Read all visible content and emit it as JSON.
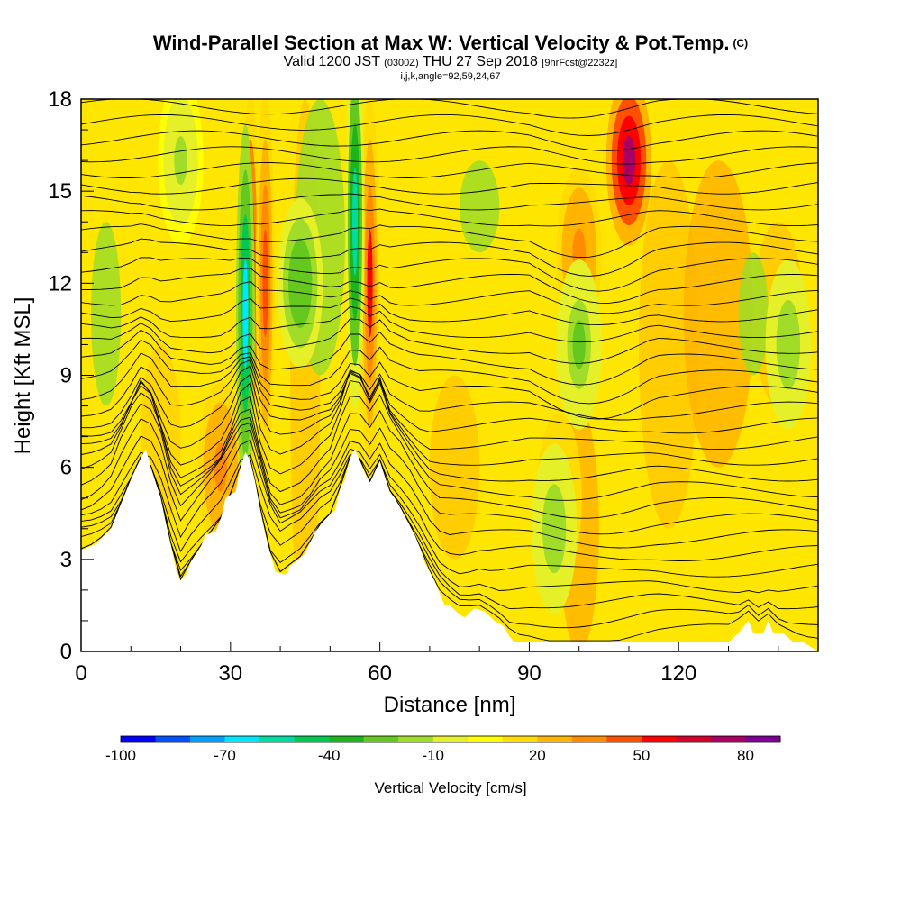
{
  "title": {
    "main": "Wind-Parallel Section at Max W: Vertical Velocity & Pot.Temp.",
    "mark": "(C)",
    "valid_prefix": "Valid 1200 JST",
    "zulu": "(0300Z)",
    "date": "THU 27 Sep 2018",
    "fcst": "[9hrFcst@2232z]",
    "indices": "i,j,k,angle=92,59,24,67"
  },
  "chart_data": {
    "type": "heatmap",
    "xlabel": "Distance [nm]",
    "ylabel": "Height [Kft MSL]",
    "xlim": [
      0,
      148
    ],
    "ylim": [
      0,
      18
    ],
    "x_ticks": [
      "0",
      "30",
      "60",
      "90",
      "120"
    ],
    "y_ticks": [
      "0",
      "3",
      "6",
      "9",
      "12",
      "15",
      "18"
    ],
    "colorbar": {
      "title": "Vertical Velocity [cm/s]",
      "tick_labels": [
        "-100",
        "-70",
        "-40",
        "-10",
        "20",
        "50",
        "80"
      ],
      "colors": [
        "#0000ff",
        "#0050ff",
        "#00a0ff",
        "#00e6ff",
        "#00dca0",
        "#00c850",
        "#1eb41e",
        "#64c81e",
        "#a0dc28",
        "#e6f028",
        "#ffff00",
        "#ffdc00",
        "#ffb400",
        "#ff8c00",
        "#ff5000",
        "#ff0000",
        "#d2002d",
        "#aa0064",
        "#7d0096"
      ]
    },
    "terrain": [
      [
        0,
        3.3
      ],
      [
        3,
        3.5
      ],
      [
        6,
        4.0
      ],
      [
        8,
        4.8
      ],
      [
        10,
        5.6
      ],
      [
        12,
        6.3
      ],
      [
        13,
        6.6
      ],
      [
        14,
        6.0
      ],
      [
        16,
        5.0
      ],
      [
        17,
        4.2
      ],
      [
        18,
        3.5
      ],
      [
        19,
        2.7
      ],
      [
        20,
        2.3
      ],
      [
        21,
        2.5
      ],
      [
        22,
        2.9
      ],
      [
        24,
        3.4
      ],
      [
        25,
        3.8
      ],
      [
        27,
        3.9
      ],
      [
        28,
        4.3
      ],
      [
        29,
        5.0
      ],
      [
        31,
        5.2
      ],
      [
        32,
        6.0
      ],
      [
        33,
        6.5
      ],
      [
        34,
        6.2
      ],
      [
        35,
        5.5
      ],
      [
        36,
        4.6
      ],
      [
        37,
        3.8
      ],
      [
        38,
        3.2
      ],
      [
        39,
        2.6
      ],
      [
        41,
        2.5
      ],
      [
        42,
        2.8
      ],
      [
        43,
        2.9
      ],
      [
        45,
        3.2
      ],
      [
        47,
        3.9
      ],
      [
        49,
        4.3
      ],
      [
        51,
        4.6
      ],
      [
        52,
        5.3
      ],
      [
        53,
        5.6
      ],
      [
        54,
        6.3
      ],
      [
        55,
        6.6
      ],
      [
        56,
        6.2
      ],
      [
        57,
        5.8
      ],
      [
        58,
        5.5
      ],
      [
        60,
        6.2
      ],
      [
        62,
        5.2
      ],
      [
        63,
        5.0
      ],
      [
        65,
        4.4
      ],
      [
        67,
        3.8
      ],
      [
        68,
        3.4
      ],
      [
        69,
        2.9
      ],
      [
        71,
        2.3
      ],
      [
        72,
        1.9
      ],
      [
        73,
        1.5
      ],
      [
        74,
        1.5
      ],
      [
        76,
        1.2
      ],
      [
        77,
        1.1
      ],
      [
        79,
        1.4
      ],
      [
        81,
        1.3
      ],
      [
        83,
        1.0
      ],
      [
        85,
        0.8
      ],
      [
        86,
        0.5
      ],
      [
        87,
        0.3
      ],
      [
        90,
        0.3
      ],
      [
        100,
        0.3
      ],
      [
        110,
        0.3
      ],
      [
        120,
        0.3
      ],
      [
        130,
        0.3
      ],
      [
        132,
        0.6
      ],
      [
        134,
        1.0
      ],
      [
        135,
        0.6
      ],
      [
        137,
        0.6
      ],
      [
        138,
        1.0
      ],
      [
        139,
        0.6
      ],
      [
        141,
        0.6
      ],
      [
        143,
        0.3
      ],
      [
        145,
        0.3
      ],
      [
        148,
        0.0
      ]
    ],
    "updraft_cores_cm_s": [
      {
        "x": 34,
        "y": 12,
        "w": 55
      },
      {
        "x": 37,
        "y": 12,
        "w": 40
      },
      {
        "x": 58,
        "y": 12,
        "w": 45
      },
      {
        "x": 110,
        "y": 16,
        "w": 70
      },
      {
        "x": 100,
        "y": 13,
        "w": 30
      },
      {
        "x": 96,
        "y": 5,
        "w": 25
      },
      {
        "x": 28,
        "y": 6,
        "w": 30
      }
    ],
    "downdraft_cores_cm_s": [
      {
        "x": 33,
        "y": 11,
        "w": -70
      },
      {
        "x": 55,
        "y": 14,
        "w": -60
      },
      {
        "x": 44,
        "y": 12,
        "w": -35
      },
      {
        "x": 100,
        "y": 10,
        "w": -30
      },
      {
        "x": 95,
        "y": 4,
        "w": -25
      },
      {
        "x": 142,
        "y": 10,
        "w": -25
      },
      {
        "x": 20,
        "y": 16,
        "w": -20
      }
    ],
    "isentrope_count": 34
  }
}
